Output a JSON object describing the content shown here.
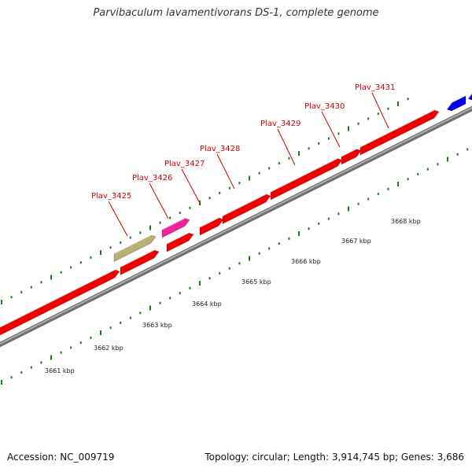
{
  "title": "Parvibaculum lavamentivorans DS-1, complete genome",
  "footer": {
    "accession": "Accession: NC_009719",
    "summary": "Topology: circular; Length: 3,914,745 bp; Genes: 3,686"
  },
  "colors": {
    "cds": "#ee0000",
    "rna": "#ee2299",
    "pseudo": "#b8b070",
    "other": "#0000ee",
    "backbone": "#888888",
    "tick": "#1e7a1e",
    "label": "#cc0000"
  },
  "gene_labels": [
    {
      "name": "Plav_3425"
    },
    {
      "name": "Plav_3426"
    },
    {
      "name": "Plav_3427"
    },
    {
      "name": "Plav_3428"
    },
    {
      "name": "Plav_3429"
    },
    {
      "name": "Plav_3430"
    },
    {
      "name": "Plav_3431"
    }
  ],
  "position_labels": [
    "3661 kbp",
    "3662 kbp",
    "3663 kbp",
    "3664 kbp",
    "3665 kbp",
    "3666 kbp",
    "3667 kbp",
    "3668 kbp"
  ]
}
